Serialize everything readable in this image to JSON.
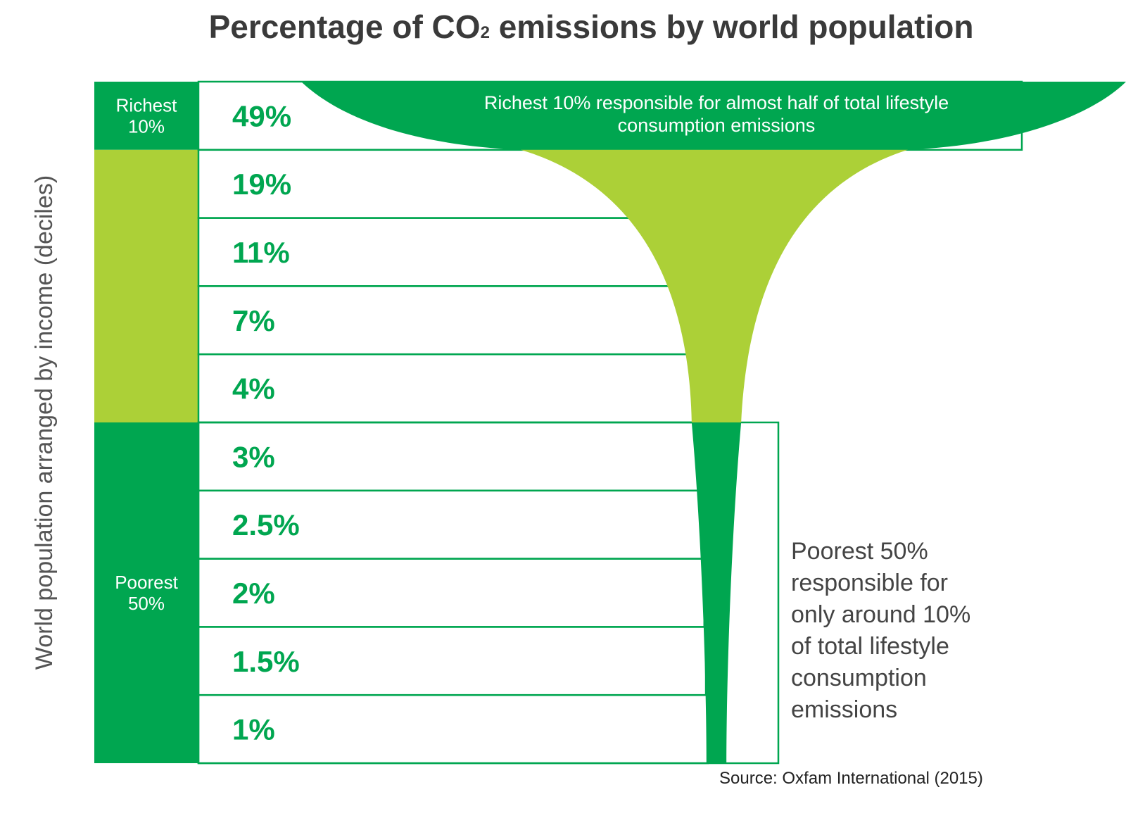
{
  "chart_data": {
    "type": "bar",
    "title": "Percentage of CO",
    "title_subscript": "2",
    "title_rest": " emissions by world population",
    "ylabel": "World population arranged by income (deciles)",
    "categories": [
      "",
      "",
      "",
      "",
      "",
      "",
      "",
      "",
      "",
      ""
    ],
    "series": [
      {
        "values": [
          49,
          19,
          11,
          7,
          4,
          3,
          2.5,
          2,
          1.5,
          1
        ],
        "labels": [
          "49%",
          "19%",
          "11%",
          "7%",
          "4%",
          "3%",
          "2.5%",
          "2%",
          "1.5%",
          "1%"
        ]
      }
    ],
    "groups": [
      {
        "label_lines": [
          "Richest",
          "10%"
        ],
        "deciles": [
          1
        ],
        "color": "#00a650"
      },
      {
        "label_lines": [],
        "deciles": [
          2,
          3,
          4,
          5
        ],
        "color": "#acd037"
      },
      {
        "label_lines": [
          "Poorest",
          "50%"
        ],
        "deciles": [
          6,
          7,
          8,
          9,
          10
        ],
        "color": "#00a650"
      }
    ],
    "annotations": [
      {
        "name": "richest-note",
        "lines": [
          "Richest 10% responsible for almost half of total lifestyle",
          "consumption emissions"
        ]
      },
      {
        "name": "poorest-note",
        "lines": [
          "Poorest 50%",
          "responsible for",
          "only around 10%",
          "of total lifestyle",
          "consumption",
          "emissions"
        ]
      }
    ],
    "source": "Source: Oxfam International (2015)",
    "colors": {
      "dark_green": "#00a650",
      "light_green": "#acd037",
      "row_border": "#00a650"
    },
    "grid": false
  }
}
